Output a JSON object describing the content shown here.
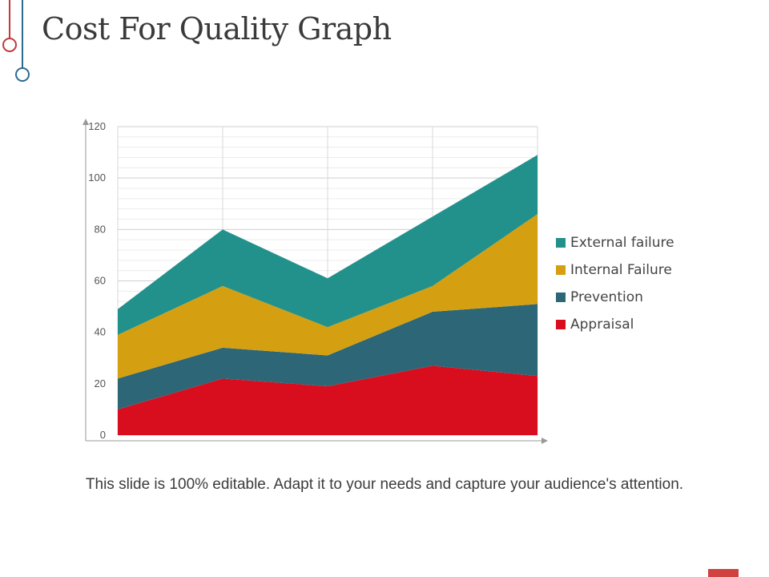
{
  "slide": {
    "title": "Cost For Quality Graph",
    "footer": "This slide is 100% editable. Adapt it to your needs and capture your audience's attention."
  },
  "colors": {
    "deco_red": "#c0393b",
    "deco_blue": "#2d6a8f",
    "corner_mark": "#d0423f"
  },
  "chart_data": {
    "type": "area",
    "stacked": true,
    "categories": [
      "",
      "",
      "",
      "",
      ""
    ],
    "ylim": [
      0,
      120
    ],
    "yticks": [
      "0",
      "20",
      "40",
      "60",
      "80",
      "100",
      "120"
    ],
    "title": "",
    "xlabel": "",
    "ylabel": "",
    "grid": true,
    "legend_position": "right",
    "series": [
      {
        "name": "Appraisal",
        "color": "#d80e1e",
        "values": [
          10,
          22,
          19,
          27,
          23
        ]
      },
      {
        "name": "Prevention",
        "color": "#2d6677",
        "values": [
          12,
          12,
          12,
          21,
          28
        ]
      },
      {
        "name": "Internal Failure",
        "color": "#d4a012",
        "values": [
          17,
          24,
          11,
          10,
          35
        ]
      },
      {
        "name": "External failure",
        "color": "#22918b",
        "values": [
          10,
          22,
          19,
          27,
          23
        ]
      }
    ],
    "legend_order": [
      "External failure",
      "Internal Failure",
      "Prevention",
      "Appraisal"
    ]
  }
}
